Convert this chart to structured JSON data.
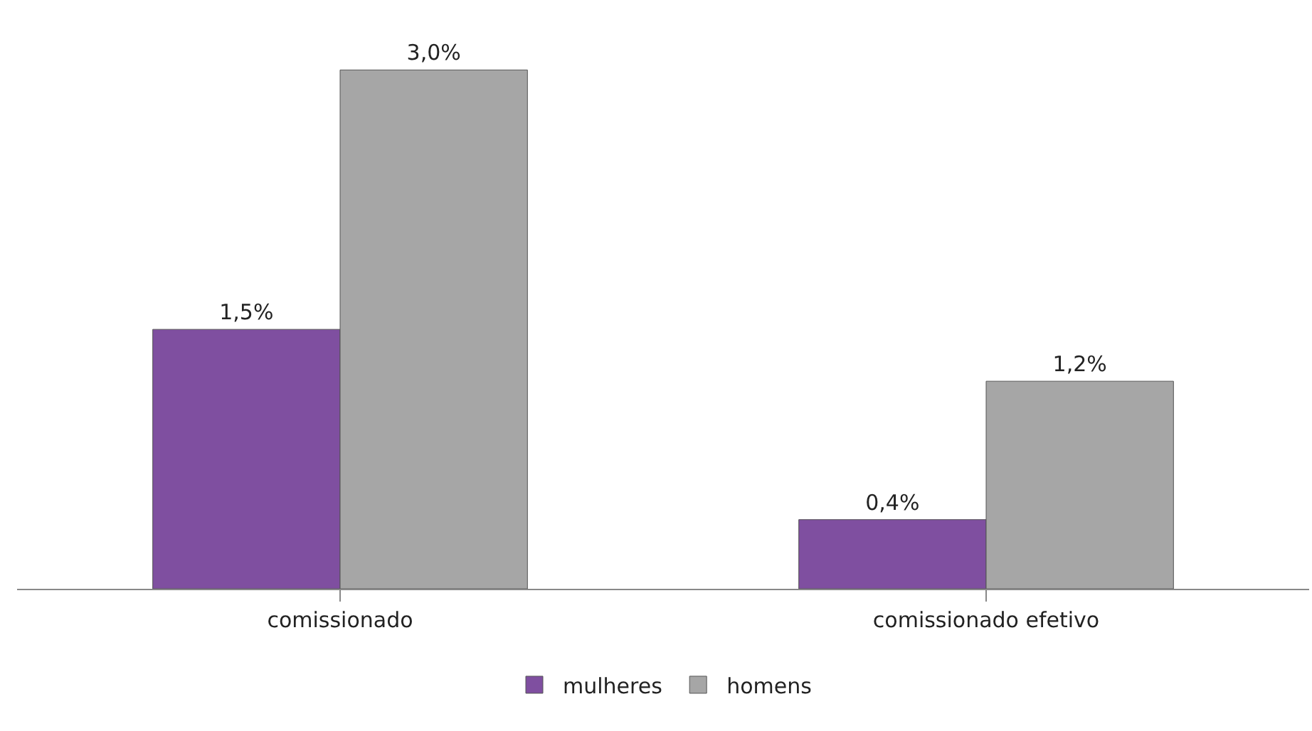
{
  "chart_data": {
    "type": "bar",
    "categories": [
      "comissionado",
      "comissionado efetivo"
    ],
    "series": [
      {
        "name": "mulheres",
        "color": "#7f4fa0",
        "values": [
          1.5,
          0.4
        ],
        "value_labels": [
          "1,5%",
          "0,4%"
        ]
      },
      {
        "name": "homens",
        "color": "#a6a6a6",
        "values": [
          3.0,
          1.2
        ],
        "value_labels": [
          "3,0%",
          "1,2%"
        ]
      }
    ],
    "legend": "bottom"
  }
}
